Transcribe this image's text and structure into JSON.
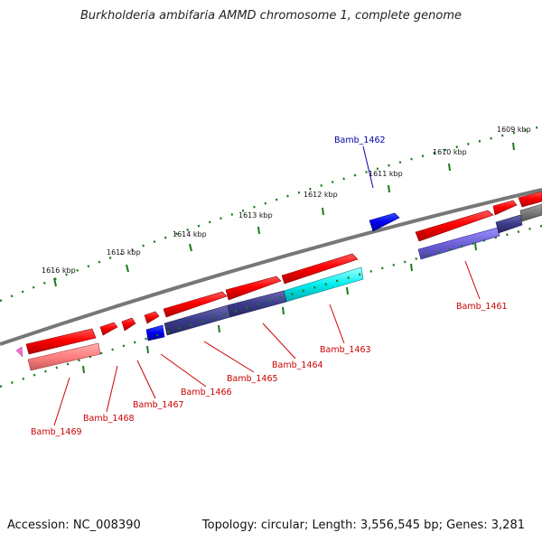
{
  "title": "Burkholderia ambifaria AMMD chromosome 1, complete genome",
  "footer": {
    "accession": "Accession: NC_008390",
    "stats": "Topology: circular; Length: 3,556,545 bp; Genes: 3,281"
  },
  "ticks": [
    "1616 kbp",
    "1615 kbp",
    "1614 kbp",
    "1613 kbp",
    "1612 kbp",
    "1611 kbp",
    "1610 kbp",
    "1609 kbp"
  ],
  "genes": {
    "top": [
      "Bamb_1462"
    ],
    "bottom": [
      "Bamb_1469",
      "Bamb_1468",
      "Bamb_1467",
      "Bamb_1466",
      "Bamb_1465",
      "Bamb_1464",
      "Bamb_1463",
      "Bamb_1461"
    ]
  },
  "colors": {
    "gene_red": "#ff0000",
    "gene_blue": "#0000ee",
    "label_red": "#cc0000",
    "label_blue": "#0000aa",
    "dot_green": "#1a7a1a",
    "backbone": "#777777"
  }
}
